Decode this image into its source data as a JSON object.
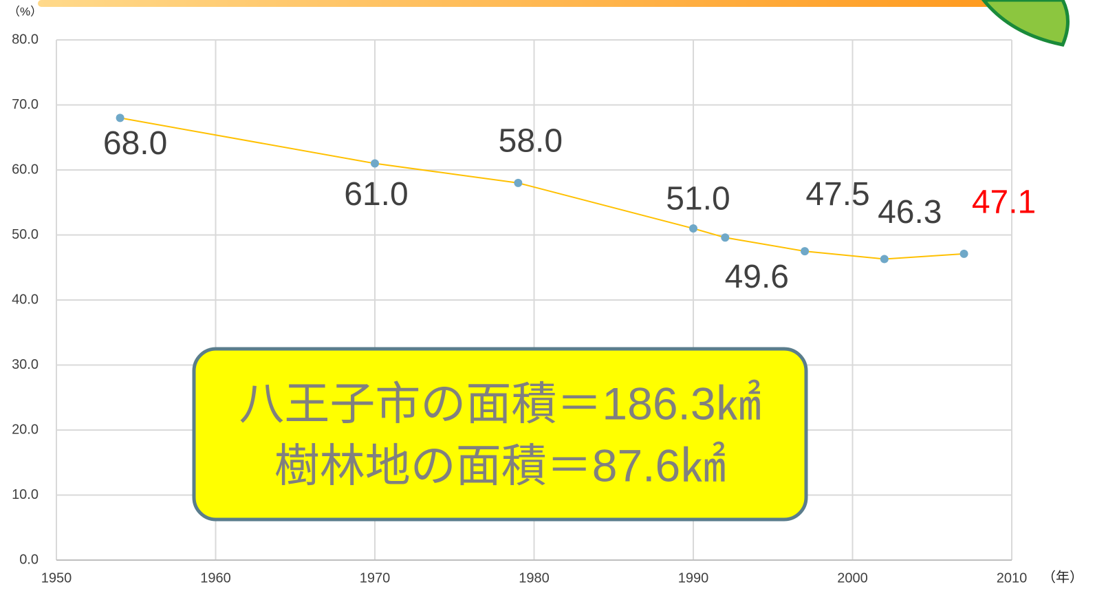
{
  "chart_data": {
    "type": "line",
    "x_unit_label": "（年）",
    "y_unit_label": "（%）",
    "x": [
      1954,
      1970,
      1979,
      1990,
      1992,
      1997,
      2002,
      2007
    ],
    "series": [
      {
        "color": "#ffc000",
        "marker_color": "#6fa8c8",
        "values": [
          68.0,
          61.0,
          58.0,
          51.0,
          49.6,
          47.5,
          46.3,
          47.1
        ],
        "value_labels": [
          "68.0",
          "61.0",
          "58.0",
          "51.0",
          "49.6",
          "47.5",
          "46.3",
          "47.1"
        ],
        "value_label_colors": [
          "#404040",
          "#404040",
          "#404040",
          "#404040",
          "#404040",
          "#404040",
          "#404040",
          "#ff0000"
        ]
      }
    ],
    "xlim": [
      1950,
      2010
    ],
    "xticks": [
      1950,
      1960,
      1970,
      1980,
      1990,
      2000,
      2010
    ],
    "ylim": [
      0,
      80
    ],
    "yticks": [
      {
        "value": 0,
        "label": "0.0"
      },
      {
        "value": 10,
        "label": "10.0"
      },
      {
        "value": 20,
        "label": "20.0"
      },
      {
        "value": 30,
        "label": "30.0"
      },
      {
        "value": 40,
        "label": "40.0"
      },
      {
        "value": 50,
        "label": "50.0"
      },
      {
        "value": 60,
        "label": "60.0"
      },
      {
        "value": 70,
        "label": "70.0"
      },
      {
        "value": 80,
        "label": "80.0"
      }
    ],
    "grid": true,
    "annotation": [
      "八王子市の面積＝186.3㎢",
      "樹林地の面積＝87.6㎢"
    ]
  }
}
